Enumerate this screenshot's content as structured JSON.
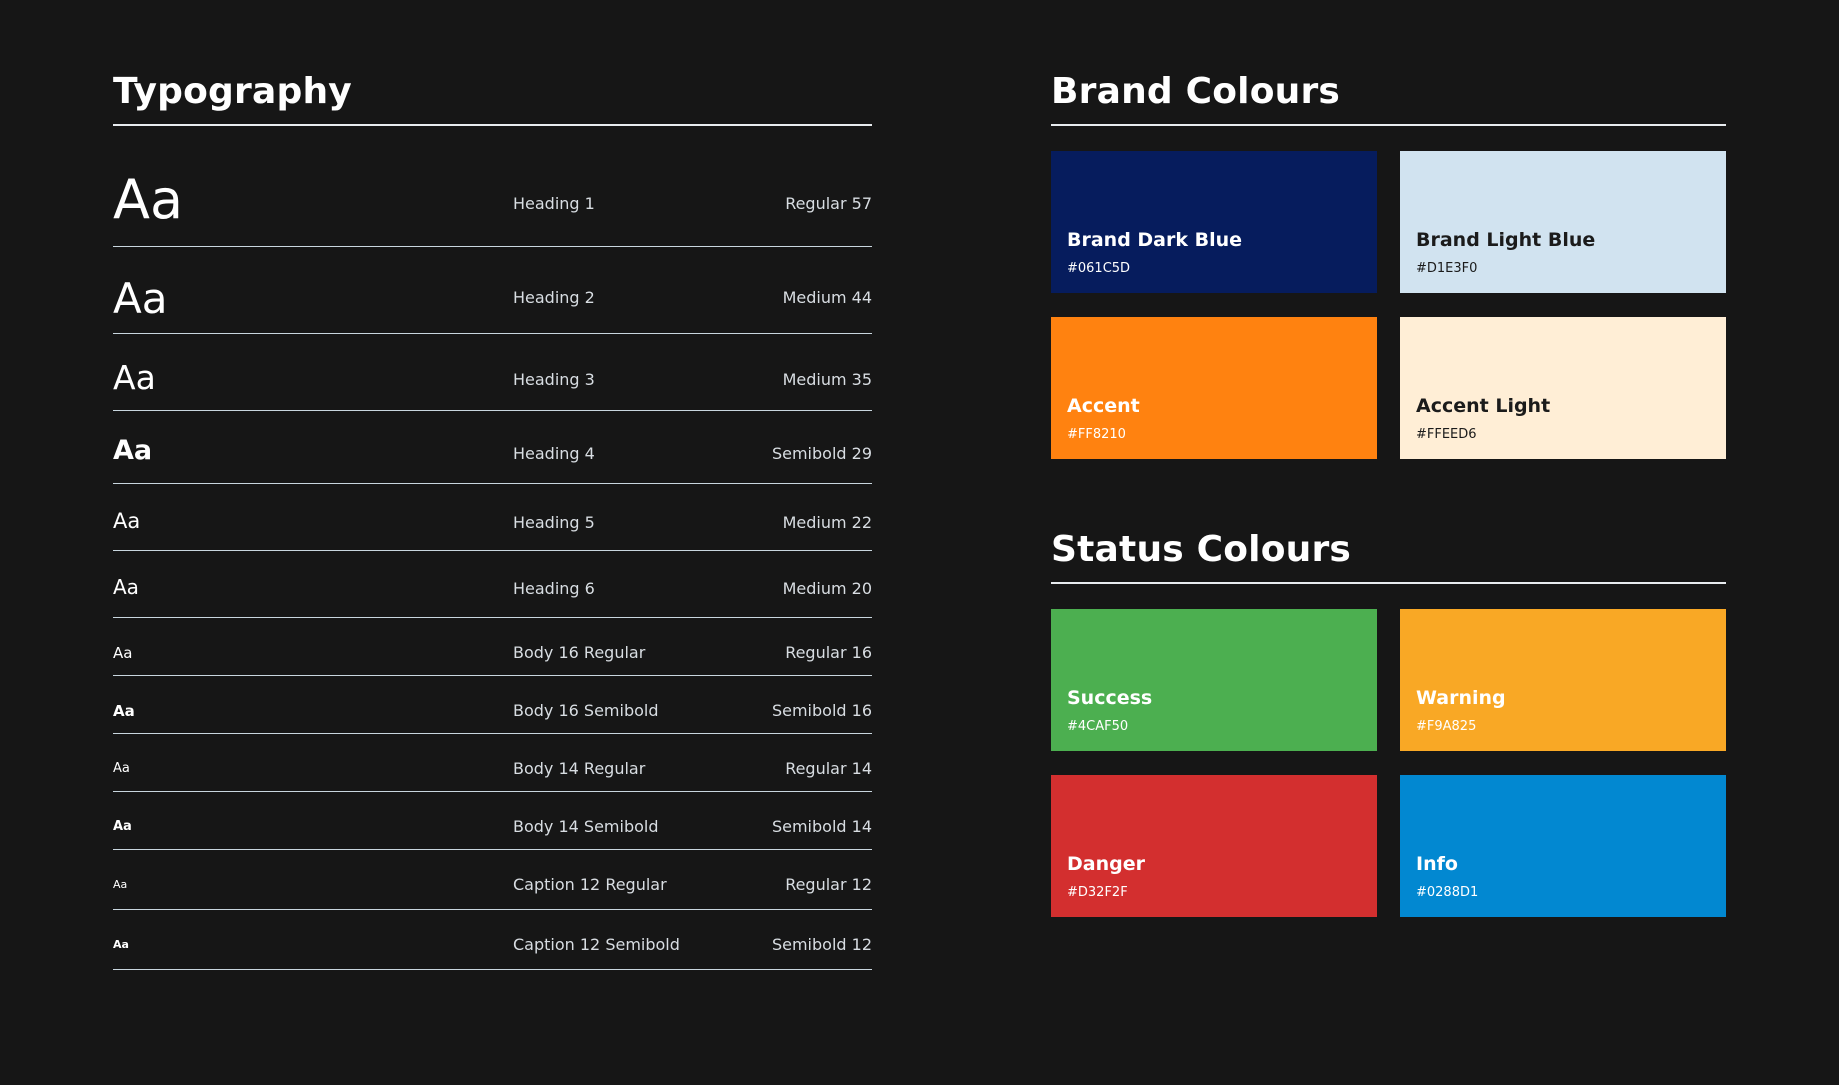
{
  "typography": {
    "title": "Typography",
    "rows": [
      {
        "sample": "Aa",
        "name": "Heading 1",
        "spec": "Regular 57"
      },
      {
        "sample": "Aa",
        "name": "Heading 2",
        "spec": "Medium 44"
      },
      {
        "sample": "Aa",
        "name": "Heading 3",
        "spec": "Medium 35"
      },
      {
        "sample": "Aa",
        "name": "Heading 4",
        "spec": "Semibold 29"
      },
      {
        "sample": "Aa",
        "name": "Heading 5",
        "spec": "Medium 22"
      },
      {
        "sample": "Aa",
        "name": "Heading 6",
        "spec": "Medium 20"
      },
      {
        "sample": "Aa",
        "name": "Body 16 Regular",
        "spec": "Regular 16"
      },
      {
        "sample": "Aa",
        "name": "Body 16 Semibold",
        "spec": "Semibold 16"
      },
      {
        "sample": "Aa",
        "name": "Body 14 Regular",
        "spec": "Regular 14"
      },
      {
        "sample": "Aa",
        "name": "Body 14 Semibold",
        "spec": "Semibold 14"
      },
      {
        "sample": "Aa",
        "name": "Caption 12 Regular",
        "spec": "Regular 12"
      },
      {
        "sample": "Aa",
        "name": "Caption 12 Semibold",
        "spec": "Semibold 12"
      }
    ]
  },
  "brand": {
    "title": "Brand Colours",
    "swatches": [
      {
        "name": "Brand Dark Blue",
        "hex": "#061C5D",
        "color": "#061C5D"
      },
      {
        "name": "Brand Light Blue",
        "hex": "#D1E3F0",
        "color": "#D1E3F0"
      },
      {
        "name": "Accent",
        "hex": "#FF8210",
        "color": "#FF8210"
      },
      {
        "name": "Accent Light",
        "hex": "#FFEED6",
        "color": "#FFEED6"
      }
    ]
  },
  "status": {
    "title": "Status Colours",
    "swatches": [
      {
        "name": "Success",
        "hex": "#4CAF50",
        "color": "#4CAF50"
      },
      {
        "name": "Warning",
        "hex": "#F9A825",
        "color": "#F9A825"
      },
      {
        "name": "Danger",
        "hex": "#D32F2F",
        "color": "#D32F2F"
      },
      {
        "name": "Info",
        "hex": "#0288D1",
        "color": "#0288D1"
      }
    ]
  }
}
